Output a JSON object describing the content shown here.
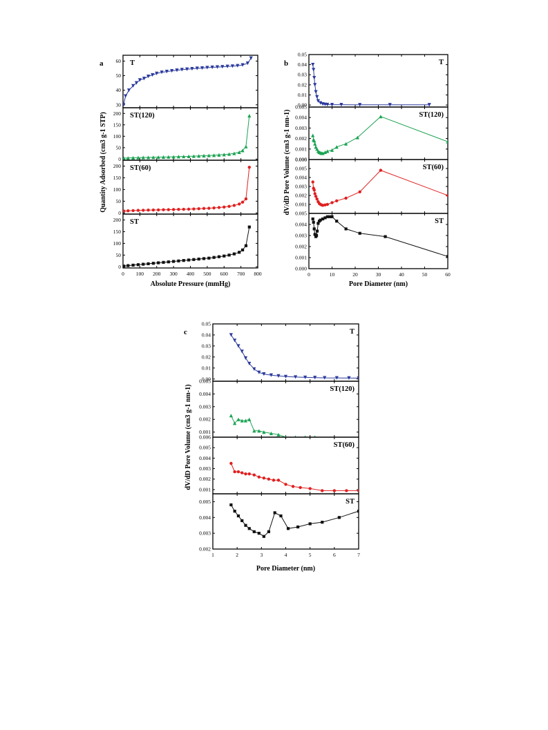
{
  "chart_data": [
    {
      "panel_label": "a",
      "type": "line",
      "xlabel": "Absolute Pressure (mmHg)",
      "ylabel": "Quantity Adsorbed (cm3 g-1 STP)",
      "xlim": [
        0,
        800
      ],
      "xticks": [
        0,
        100,
        200,
        300,
        400,
        500,
        600,
        700,
        800
      ],
      "subplots": [
        {
          "name": "T",
          "color": "#2b3a9c",
          "marker": "triangle-down",
          "ylim": [
            28,
            64
          ],
          "yticks": [
            30,
            40,
            50,
            60
          ],
          "x": [
            3,
            15,
            35,
            60,
            80,
            100,
            125,
            150,
            175,
            200,
            230,
            260,
            290,
            320,
            350,
            380,
            410,
            440,
            470,
            500,
            530,
            560,
            590,
            620,
            650,
            680,
            710,
            740,
            760
          ],
          "y": [
            30,
            36,
            40,
            43,
            45,
            47,
            48,
            49.5,
            50.5,
            51.5,
            52.3,
            52.8,
            53.3,
            53.7,
            54.1,
            54.4,
            54.7,
            55,
            55.2,
            55.5,
            55.7,
            55.9,
            56.1,
            56.3,
            56.5,
            56.8,
            57.3,
            58.5,
            62
          ]
        },
        {
          "name": "ST(120)",
          "color": "#1aa352",
          "marker": "triangle-up",
          "ylim": [
            -5,
            225
          ],
          "yticks": [
            0,
            50,
            100,
            150,
            200
          ],
          "x": [
            5,
            30,
            60,
            90,
            120,
            150,
            180,
            210,
            240,
            270,
            300,
            330,
            360,
            390,
            420,
            450,
            480,
            510,
            540,
            570,
            600,
            630,
            660,
            690,
            710,
            730,
            750
          ],
          "y": [
            4,
            5,
            6,
            6.5,
            7,
            7.5,
            8,
            8.5,
            9,
            9.5,
            10,
            11,
            11.5,
            12,
            13,
            14,
            15,
            16,
            17,
            18.5,
            20,
            22,
            25,
            30,
            38,
            55,
            190
          ]
        },
        {
          "name": "ST(60)",
          "color": "#e02020",
          "marker": "circle",
          "ylim": [
            -5,
            225
          ],
          "yticks": [
            0,
            50,
            100,
            150,
            200
          ],
          "x": [
            5,
            30,
            60,
            90,
            120,
            150,
            180,
            210,
            240,
            270,
            300,
            330,
            360,
            390,
            420,
            450,
            480,
            510,
            540,
            570,
            600,
            630,
            660,
            690,
            710,
            730,
            750
          ],
          "y": [
            8,
            9,
            10,
            11,
            11.5,
            12,
            12.5,
            13,
            13.5,
            14,
            14.5,
            15,
            15.5,
            16,
            17,
            18,
            19,
            20,
            21.5,
            23,
            25,
            28,
            32,
            38,
            46,
            60,
            195
          ]
        },
        {
          "name": "ST",
          "color": "#111111",
          "marker": "square",
          "ylim": [
            -5,
            225
          ],
          "yticks": [
            0,
            50,
            100,
            150,
            200
          ],
          "x": [
            5,
            30,
            60,
            90,
            120,
            150,
            180,
            210,
            240,
            270,
            300,
            330,
            360,
            390,
            420,
            450,
            480,
            510,
            540,
            570,
            600,
            630,
            660,
            690,
            710,
            730,
            750
          ],
          "y": [
            3,
            5,
            7,
            9,
            11,
            13,
            15,
            17,
            19,
            21,
            23,
            25,
            27,
            29,
            31,
            33,
            35,
            37,
            40,
            43,
            46,
            50,
            55,
            62,
            72,
            90,
            170
          ]
        }
      ]
    },
    {
      "panel_label": "b",
      "type": "line",
      "xlabel": "Pore Diameter (nm)",
      "ylabel": "dV/dD Pore Volume (cm3 g-1 nm-1)",
      "xlim": [
        0,
        60
      ],
      "xticks": [
        0,
        10,
        20,
        30,
        40,
        50,
        60
      ],
      "subplots": [
        {
          "name": "T",
          "color": "#2b3a9c",
          "marker": "triangle-down",
          "ylim": [
            -0.002,
            0.05
          ],
          "yticks": [
            0.0,
            0.01,
            0.02,
            0.03,
            0.04,
            0.05
          ],
          "x": [
            1.7,
            2.0,
            2.3,
            2.6,
            3.0,
            3.5,
            4.0,
            5,
            6,
            7,
            8,
            10,
            14,
            22,
            35,
            52
          ],
          "y": [
            0.04,
            0.035,
            0.027,
            0.02,
            0.013,
            0.008,
            0.004,
            0.002,
            0.001,
            0.0006,
            0.0004,
            0.0003,
            0.0003,
            0.0002,
            0.0002,
            0.0002
          ]
        },
        {
          "name": "ST(120)",
          "color": "#1aa352",
          "marker": "triangle-up",
          "ylim": [
            0,
            0.005
          ],
          "yticks": [
            0.0,
            0.001,
            0.002,
            0.003,
            0.004,
            0.005
          ],
          "x": [
            1.7,
            2.0,
            2.3,
            2.6,
            3.0,
            3.5,
            4.0,
            4.5,
            5,
            5.5,
            6,
            7,
            8,
            10,
            12,
            16,
            21,
            31,
            60
          ],
          "y": [
            0.0023,
            0.0019,
            0.0018,
            0.0015,
            0.0012,
            0.001,
            0.0008,
            0.0007,
            0.00065,
            0.0006,
            0.0006,
            0.0007,
            0.0008,
            0.0009,
            0.0012,
            0.0015,
            0.0021,
            0.0041,
            0.0017
          ]
        },
        {
          "name": "ST(60)",
          "color": "#e02020",
          "marker": "circle",
          "ylim": [
            0,
            0.006
          ],
          "yticks": [
            0.001,
            0.002,
            0.003,
            0.004,
            0.005,
            0.006
          ],
          "x": [
            1.7,
            2.0,
            2.3,
            2.6,
            3.0,
            3.5,
            4.0,
            4.5,
            5,
            5.5,
            6,
            7,
            8,
            10,
            12,
            16,
            22,
            31,
            60
          ],
          "y": [
            0.0035,
            0.0028,
            0.0026,
            0.0022,
            0.0019,
            0.0016,
            0.0013,
            0.0011,
            0.001,
            0.00095,
            0.0009,
            0.00095,
            0.001,
            0.0012,
            0.0014,
            0.0017,
            0.0024,
            0.0048,
            0.002
          ]
        },
        {
          "name": "ST",
          "color": "#111111",
          "marker": "square",
          "ylim": [
            0,
            0.005
          ],
          "yticks": [
            0.0,
            0.001,
            0.002,
            0.003,
            0.004,
            0.005
          ],
          "x": [
            1.7,
            2.0,
            2.3,
            2.6,
            3.0,
            3.3,
            3.6,
            4.0,
            4.5,
            5,
            6,
            7,
            8,
            9,
            10,
            12,
            16,
            22,
            33,
            60
          ],
          "y": [
            0.0045,
            0.0042,
            0.0036,
            0.0031,
            0.0029,
            0.003,
            0.0034,
            0.0041,
            0.0043,
            0.0044,
            0.0045,
            0.0046,
            0.0047,
            0.0047,
            0.0047,
            0.0043,
            0.0036,
            0.0032,
            0.0029,
            0.0011
          ]
        }
      ]
    },
    {
      "panel_label": "c",
      "type": "line",
      "xlabel": "Pore Diameter (nm)",
      "ylabel": "dV/dD Pore Volume (cm3 g-1 nm-1)",
      "xlim": [
        1,
        7
      ],
      "xticks": [
        1,
        2,
        3,
        4,
        5,
        6,
        7
      ],
      "subplots": [
        {
          "name": "T",
          "color": "#2b3a9c",
          "marker": "triangle-down",
          "ylim": [
            -0.002,
            0.05
          ],
          "yticks": [
            0.0,
            0.01,
            0.02,
            0.03,
            0.04,
            0.05
          ],
          "x": [
            1.75,
            1.9,
            2.05,
            2.2,
            2.35,
            2.5,
            2.7,
            2.9,
            3.1,
            3.4,
            3.7,
            4.0,
            4.4,
            4.8,
            5.2,
            5.6,
            6.1,
            6.6,
            7.0
          ],
          "y": [
            0.04,
            0.035,
            0.03,
            0.025,
            0.019,
            0.014,
            0.009,
            0.006,
            0.0045,
            0.0035,
            0.0028,
            0.0022,
            0.0018,
            0.0015,
            0.0013,
            0.0011,
            0.001,
            0.0009,
            0.0008
          ]
        },
        {
          "name": "ST(120)",
          "color": "#1aa352",
          "marker": "triangle-up",
          "ylim": [
            0.0006,
            0.005
          ],
          "yticks": [
            0.001,
            0.002,
            0.003,
            0.004,
            0.005
          ],
          "x": [
            1.75,
            1.9,
            2.05,
            2.2,
            2.35,
            2.5,
            2.7,
            2.9,
            3.1,
            3.4,
            3.7,
            4.0,
            4.4,
            4.8,
            5.2,
            5.6,
            6.1,
            6.6,
            7.0
          ],
          "y": [
            0.0023,
            0.0017,
            0.002,
            0.0019,
            0.0019,
            0.002,
            0.0011,
            0.0011,
            0.001,
            0.0009,
            0.0008,
            0.0006,
            0.0006,
            0.0006,
            0.0006,
            0.0005,
            0.0005,
            0.0005,
            0.0005
          ]
        },
        {
          "name": "ST(60)",
          "color": "#e02020",
          "marker": "circle",
          "ylim": [
            0.0006,
            0.006
          ],
          "yticks": [
            0.001,
            0.002,
            0.003,
            0.004,
            0.005,
            0.006
          ],
          "x": [
            1.75,
            1.9,
            2.05,
            2.2,
            2.35,
            2.5,
            2.7,
            2.9,
            3.1,
            3.3,
            3.5,
            3.7,
            4.0,
            4.3,
            4.6,
            5.0,
            5.5,
            6.0,
            6.5,
            7.0
          ],
          "y": [
            0.0035,
            0.0027,
            0.0027,
            0.0026,
            0.0025,
            0.0025,
            0.0024,
            0.0022,
            0.0021,
            0.002,
            0.0019,
            0.0019,
            0.0015,
            0.0013,
            0.0012,
            0.0011,
            0.0009,
            0.0009,
            0.0009,
            0.0009
          ]
        },
        {
          "name": "ST",
          "color": "#111111",
          "marker": "square",
          "ylim": [
            0.002,
            0.0055
          ],
          "yticks": [
            0.002,
            0.003,
            0.004,
            0.005
          ],
          "x": [
            1.75,
            1.9,
            2.05,
            2.2,
            2.35,
            2.5,
            2.7,
            2.9,
            3.1,
            3.3,
            3.55,
            3.8,
            4.1,
            4.5,
            5.0,
            5.5,
            6.2,
            7.0
          ],
          "y": [
            0.0048,
            0.0044,
            0.0041,
            0.0038,
            0.0035,
            0.0033,
            0.0031,
            0.003,
            0.0028,
            0.0031,
            0.0043,
            0.0041,
            0.0033,
            0.0034,
            0.0036,
            0.0037,
            0.004,
            0.0044
          ]
        }
      ]
    }
  ]
}
